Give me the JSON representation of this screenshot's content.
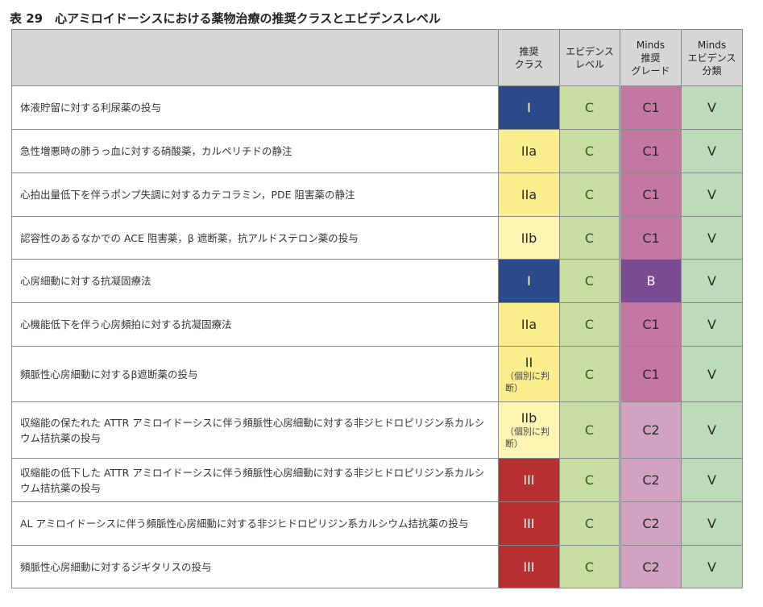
{
  "title": "表 29　心アミロイドーシスにおける薬物治療の推奨クラスとエビデンスレベル",
  "headers": {
    "item": "",
    "class": "推奨\nクラス",
    "evidence": "エビデンス\nレベル",
    "minds_grade": "Minds\n推奨\nグレード",
    "minds_class": "Minds\nエビデンス\n分類"
  },
  "colors": {
    "I": "#2a4a8a",
    "IIa": "#fbee8c",
    "IIb": "#fdf4b4",
    "II": "#fbee8c",
    "III": "#b5302f",
    "C": "#c8dda2",
    "C1": "#c477a1",
    "B": "#7a4a92",
    "C2": "#d2a2c1",
    "V": "#bcdbb8",
    "header": "#d6d6d6"
  },
  "rows": [
    {
      "item": "体液貯留に対する利尿薬の投与",
      "class": "I",
      "class_note": "",
      "evidence": "C",
      "grade": "C1",
      "minds": "V"
    },
    {
      "item": "急性増悪時の肺うっ血に対する硝酸薬，カルペリチドの静注",
      "class": "IIa",
      "class_note": "",
      "evidence": "C",
      "grade": "C1",
      "minds": "V"
    },
    {
      "item": "心拍出量低下を伴うポンプ失調に対するカテコラミン，PDE 阻害薬の静注",
      "class": "IIa",
      "class_note": "",
      "evidence": "C",
      "grade": "C1",
      "minds": "V"
    },
    {
      "item": "認容性のあるなかでの ACE 阻害薬，β 遮断薬，抗アルドステロン薬の投与",
      "class": "IIb",
      "class_note": "",
      "evidence": "C",
      "grade": "C1",
      "minds": "V"
    },
    {
      "item": "心房細動に対する抗凝固療法",
      "class": "I",
      "class_note": "",
      "evidence": "C",
      "grade": "B",
      "minds": "V"
    },
    {
      "item": "心機能低下を伴う心房頻拍に対する抗凝固療法",
      "class": "IIa",
      "class_note": "",
      "evidence": "C",
      "grade": "C1",
      "minds": "V"
    },
    {
      "item": "頻脈性心房細動に対するβ遮断薬の投与",
      "class": "II",
      "class_note": "（個別に判断）",
      "evidence": "C",
      "grade": "C1",
      "minds": "V"
    },
    {
      "item": "収縮能の保たれた ATTR アミロイドーシスに伴う頻脈性心房細動に対する非ジヒドロピリジン系カルシウム拮抗薬の投与",
      "class": "IIb",
      "class_note": "（個別に判断）",
      "evidence": "C",
      "grade": "C2",
      "minds": "V"
    },
    {
      "item": "収縮能の低下した ATTR アミロイドーシスに伴う頻脈性心房細動に対する非ジヒドロピリジン系カルシウム拮抗薬の投与",
      "class": "III",
      "class_note": "",
      "evidence": "C",
      "grade": "C2",
      "minds": "V"
    },
    {
      "item": "AL アミロイドーシスに伴う頻脈性心房細動に対する非ジヒドロピリジン系カルシウム拮抗薬の投与",
      "class": "III",
      "class_note": "",
      "evidence": "C",
      "grade": "C2",
      "minds": "V"
    },
    {
      "item": "頻脈性心房細動に対するジギタリスの投与",
      "class": "III",
      "class_note": "",
      "evidence": "C",
      "grade": "C2",
      "minds": "V"
    }
  ]
}
